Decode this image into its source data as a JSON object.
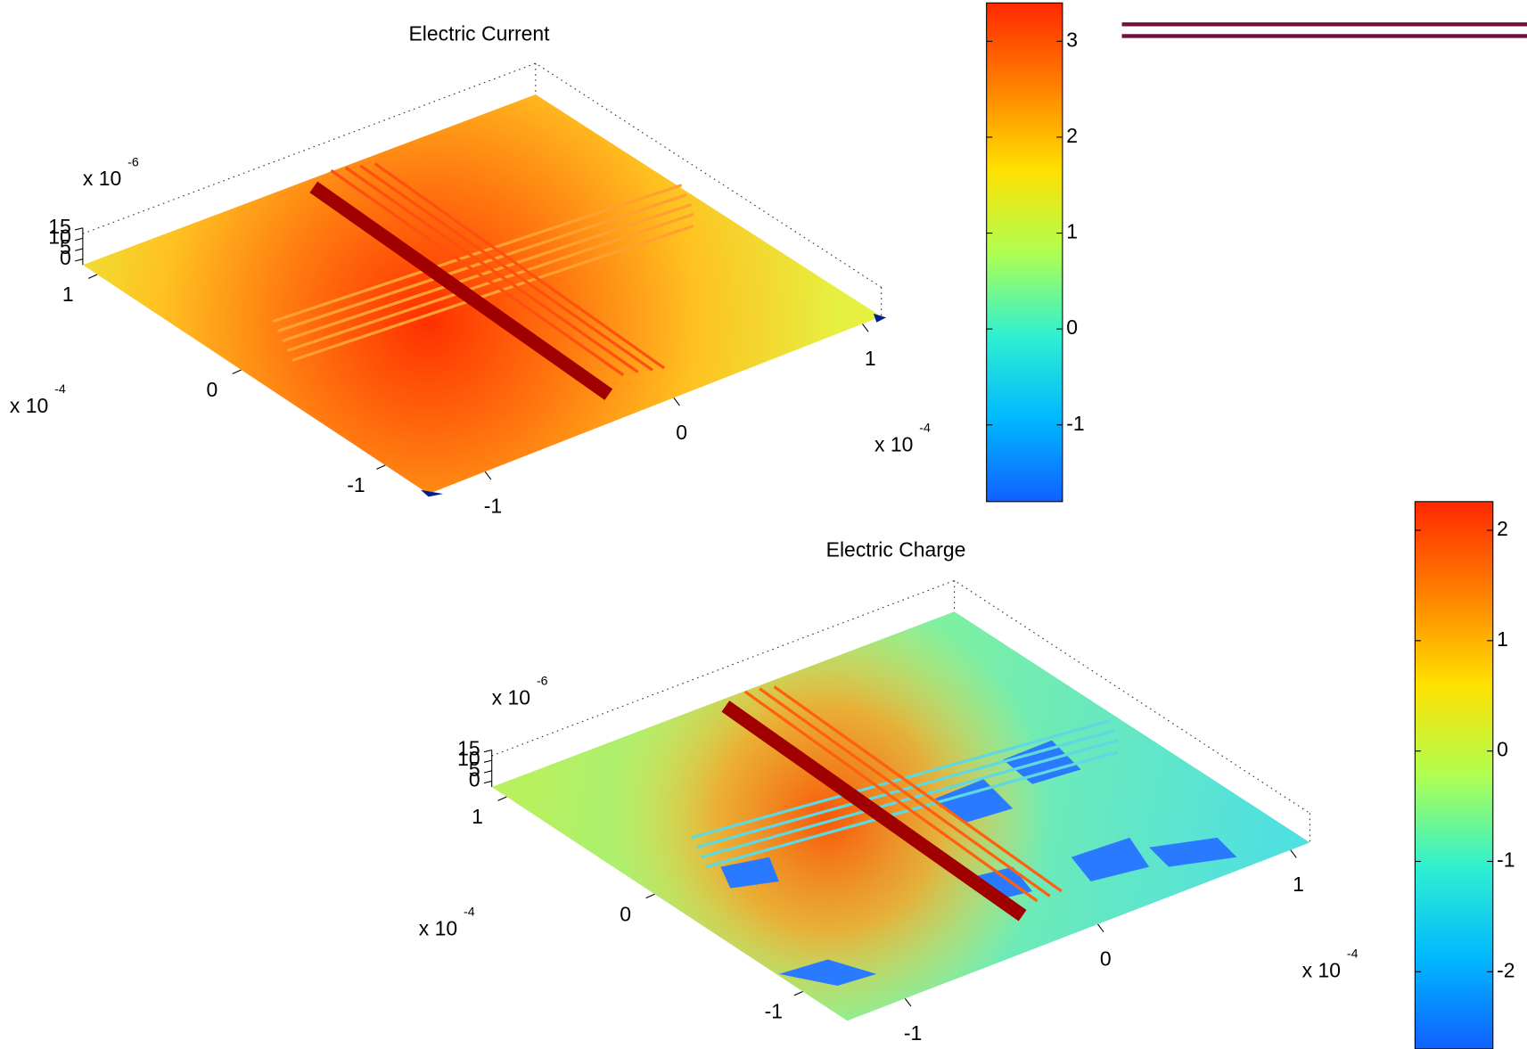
{
  "chart_data": [
    {
      "type": "surface",
      "title": "Electric Current",
      "colormap": "jet",
      "xlim": [
        -1.3,
        1.1
      ],
      "xticks": [
        -1,
        0,
        1
      ],
      "ylim": [
        -1.3,
        1.1
      ],
      "yticks": [
        -1,
        0,
        1
      ],
      "zlim": [
        0,
        15
      ],
      "zticks": [
        0,
        5,
        10,
        15
      ],
      "x_multiplier": {
        "text": "x 10",
        "exponent": "-4"
      },
      "y_multiplier": {
        "text": "x 10",
        "exponent": "-4"
      },
      "z_multiplier": {
        "text": "x 10",
        "exponent": "-6"
      },
      "colorbar": {
        "clim": [
          -1.8,
          3.4
        ],
        "ticks": [
          -1,
          0,
          1,
          2,
          3
        ]
      }
    },
    {
      "type": "surface",
      "title": "Electric Charge",
      "colormap": "jet",
      "xlim": [
        -1.3,
        1.1
      ],
      "xticks": [
        -1,
        0,
        1
      ],
      "ylim": [
        -1.3,
        1.1
      ],
      "yticks": [
        -1,
        0,
        1
      ],
      "zlim": [
        0,
        15
      ],
      "zticks": [
        0,
        5,
        10,
        15
      ],
      "x_multiplier": {
        "text": "x 10",
        "exponent": "-4"
      },
      "y_multiplier": {
        "text": "x 10",
        "exponent": "-4"
      },
      "z_multiplier": {
        "text": "x 10",
        "exponent": "-6"
      },
      "colorbar": {
        "clim": [
          -2.7,
          2.26
        ],
        "ticks": [
          -2,
          -1,
          0,
          1,
          2
        ]
      }
    }
  ]
}
